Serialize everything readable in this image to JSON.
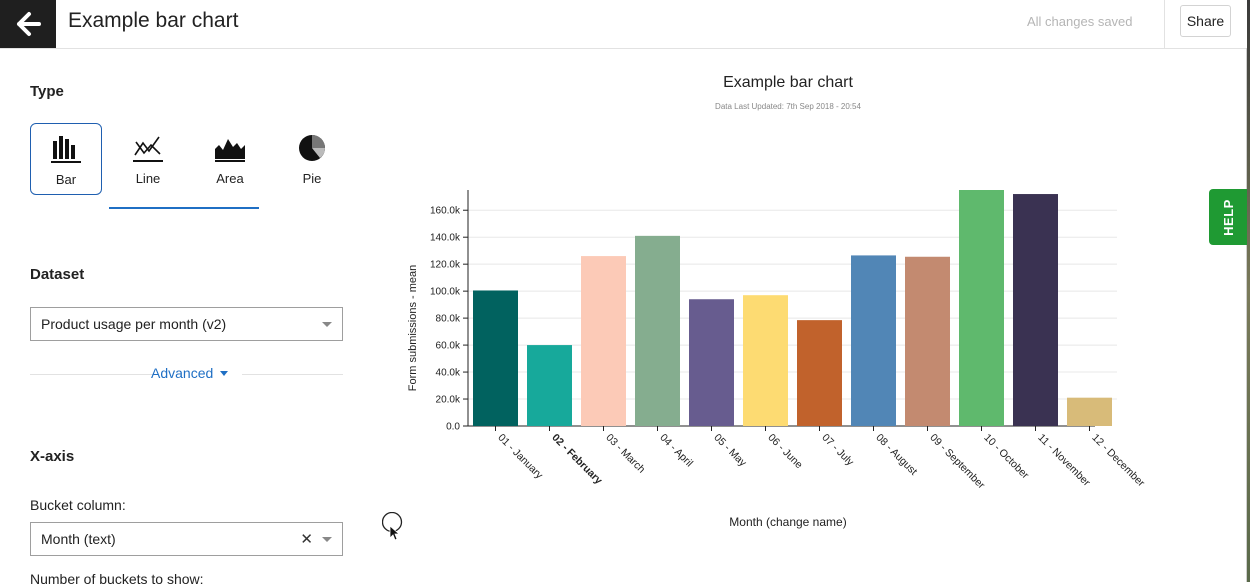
{
  "header": {
    "title": "Example bar chart",
    "status": "All changes saved",
    "share_label": "Share"
  },
  "left_panel": {
    "type_heading": "Type",
    "types": [
      {
        "label": "Bar",
        "icon": "bar-chart-icon",
        "selected": true
      },
      {
        "label": "Line",
        "icon": "line-chart-icon",
        "selected": false
      },
      {
        "label": "Area",
        "icon": "area-chart-icon",
        "selected": false
      },
      {
        "label": "Pie",
        "icon": "pie-chart-icon",
        "selected": false
      }
    ],
    "dataset_heading": "Dataset",
    "dataset_value": "Product usage per month (v2)",
    "advanced_label": "Advanced",
    "xaxis_heading": "X-axis",
    "bucket_column_label": "Bucket column:",
    "bucket_column_value": "Month (text)",
    "buckets_to_show_label": "Number of buckets to show:"
  },
  "help_label": "HELP",
  "chart_data": {
    "type": "bar",
    "title": "Example bar chart",
    "subtitle": "Data Last Updated: 7th Sep 2018 - 20:54",
    "xlabel": "Month (change name)",
    "ylabel": "Form submissions - mean",
    "ylim": [
      0,
      175000
    ],
    "yticks": [
      0,
      20000,
      40000,
      60000,
      80000,
      100000,
      120000,
      140000,
      160000
    ],
    "ytick_labels": [
      "0.0",
      "20.0k",
      "40.0k",
      "60.0k",
      "80.0k",
      "100.0k",
      "120.0k",
      "140.0k",
      "160.0k"
    ],
    "grid": true,
    "categories": [
      "01 - January",
      "02 - February",
      "03 - March",
      "04 - April",
      "05 - May",
      "06 - June",
      "07 - July",
      "08 - August",
      "09 - September",
      "10 - October",
      "11 - November",
      "12 - December"
    ],
    "highlighted_category": "02 - February",
    "values": [
      100500,
      60000,
      126000,
      141000,
      94000,
      97000,
      78500,
      126500,
      125500,
      175000,
      172000,
      21000
    ],
    "colors": [
      "#01625f",
      "#17a99b",
      "#fccab7",
      "#85ad8f",
      "#675c8f",
      "#fddb72",
      "#c1622c",
      "#5186b6",
      "#c38a70",
      "#5fb96d",
      "#3a3252",
      "#d8bb79"
    ]
  }
}
